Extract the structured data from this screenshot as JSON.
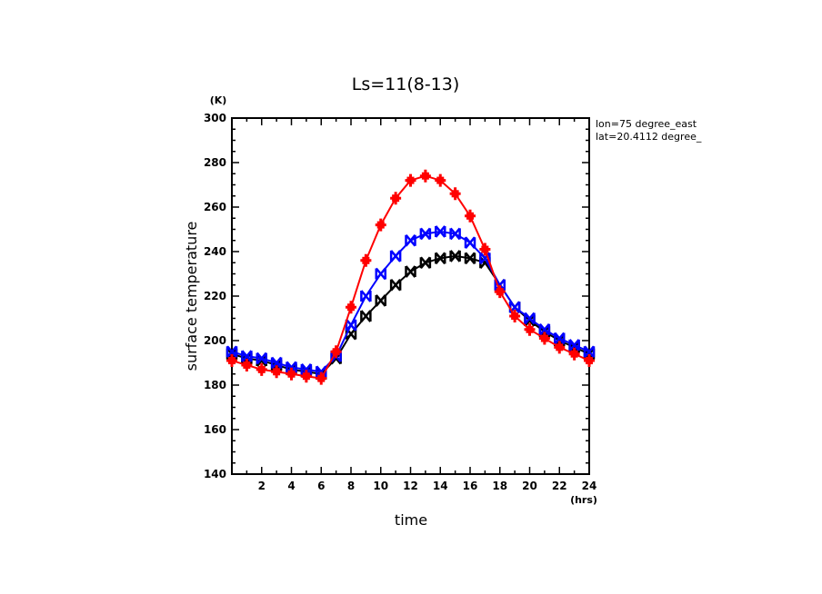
{
  "chart_data": {
    "type": "line",
    "title": "Ls=11(8-13)",
    "xlabel": "time",
    "ylabel": "surface temperature",
    "x_unit": "(hrs)",
    "y_unit": "(K)",
    "xlim": [
      0,
      24
    ],
    "ylim": [
      140,
      300
    ],
    "x_ticks": [
      2,
      4,
      6,
      8,
      10,
      12,
      14,
      16,
      18,
      20,
      22,
      24
    ],
    "y_ticks": [
      140,
      160,
      180,
      200,
      220,
      240,
      260,
      280,
      300
    ],
    "grid": false,
    "annotations": [
      "lon=75 degree_east",
      "lat=20.4112 degree_"
    ],
    "x": [
      0,
      1,
      2,
      3,
      4,
      5,
      6,
      7,
      8,
      9,
      10,
      11,
      12,
      13,
      14,
      15,
      16,
      17,
      18,
      19,
      20,
      21,
      22,
      23,
      24
    ],
    "series": [
      {
        "name": "red",
        "color": "#ff0000",
        "marker": "plus",
        "values": [
          191,
          189,
          187,
          186,
          185,
          184,
          183,
          195,
          215,
          236,
          252,
          264,
          272,
          274,
          272,
          266,
          256,
          241,
          222,
          211,
          205,
          201,
          197,
          194,
          191
        ]
      },
      {
        "name": "blue",
        "color": "#0000ff",
        "marker": "x-bowtie",
        "values": [
          195,
          193,
          192,
          190,
          188,
          187,
          186,
          193,
          207,
          220,
          230,
          238,
          245,
          248,
          249,
          248,
          244,
          237,
          225,
          215,
          210,
          205,
          201,
          198,
          195
        ]
      },
      {
        "name": "black",
        "color": "#000000",
        "marker": "x-bowtie",
        "values": [
          194,
          192,
          191,
          189,
          187,
          186,
          185,
          192,
          203,
          211,
          218,
          225,
          231,
          235,
          237,
          238,
          237,
          235,
          225,
          215,
          209,
          204,
          200,
          197,
          194
        ]
      }
    ]
  }
}
